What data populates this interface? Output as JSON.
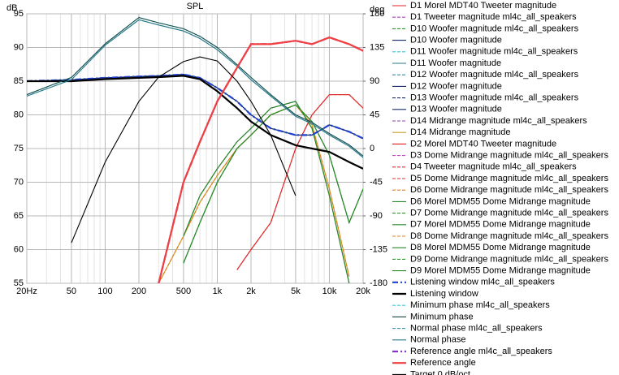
{
  "chart_data": {
    "type": "line",
    "title": "SPL",
    "y_label": "dB",
    "y2_label": "deg",
    "x_scale": "log",
    "grid": true,
    "minor_grid": true,
    "legend": "right",
    "xlim": [
      20,
      20000
    ],
    "xticks": [
      {
        "value": 20,
        "label": "20Hz"
      },
      50,
      100,
      200,
      500,
      {
        "value": 1000,
        "label": "1k"
      },
      {
        "value": 2000,
        "label": "2k"
      },
      {
        "value": 5000,
        "label": "5k"
      },
      {
        "value": 10000,
        "label": "10k"
      },
      {
        "value": 20000,
        "label": "20k"
      }
    ],
    "ylim": [
      55,
      95
    ],
    "yticks": [
      95,
      90,
      85,
      80,
      75,
      70,
      65,
      60,
      55
    ],
    "y2lim": [
      -180,
      180
    ],
    "y2ticks": [
      180,
      135,
      90,
      45,
      0,
      -45,
      -90,
      -135,
      -180
    ],
    "x": [
      20,
      50,
      100,
      200,
      300,
      500,
      700,
      1000,
      1500,
      2000,
      3000,
      5000,
      7000,
      10000,
      15000,
      20000
    ],
    "series": [
      {
        "name": "D1 Morel MDT40 Tweeter magnitude",
        "color": "#e02020",
        "style": "solid",
        "values": [
          null,
          null,
          null,
          null,
          55,
          70,
          76,
          82,
          87,
          90.5,
          90.5,
          91,
          90.5,
          91.5,
          90.5,
          89.5
        ]
      },
      {
        "name": "D1 Tweeter magnitude ml4c_all_speakers",
        "color": "#b040c0",
        "style": "dashed",
        "values": [
          null,
          null,
          null,
          null,
          55,
          70,
          76,
          82,
          87,
          90.5,
          90.5,
          91,
          90.5,
          91.5,
          90.5,
          89.5
        ]
      },
      {
        "name": "D10 Woofer magnitude ml4c_all_speakers",
        "color": "#2a9a2a",
        "style": "dashed",
        "values": [
          85,
          85.2,
          85.5,
          85.7,
          85.8,
          86,
          85.5,
          84,
          82,
          80,
          78,
          77,
          77,
          78.5,
          77.5,
          76.5
        ]
      },
      {
        "name": "D10 Woofer magnitude",
        "color": "#1a2a6a",
        "style": "solid",
        "values": [
          85,
          85.2,
          85.5,
          85.7,
          85.8,
          86,
          85.5,
          84,
          82,
          80,
          78,
          77,
          77,
          78.5,
          77.5,
          76.5
        ]
      },
      {
        "name": "D11 Woofer magnitude ml4c_all_speakers",
        "color": "#30c8d8",
        "style": "dashed",
        "values": [
          85,
          85,
          85.3,
          85.5,
          85.6,
          85.8,
          85.3,
          83.5,
          81,
          79,
          77,
          75.5,
          75,
          74.5,
          73,
          72
        ]
      },
      {
        "name": "D11 Woofer magnitude",
        "color": "#2a7a8a",
        "style": "solid",
        "values": [
          85,
          85,
          85.3,
          85.5,
          85.6,
          85.8,
          85.3,
          83.5,
          81,
          79,
          77,
          75.5,
          75,
          74.5,
          73,
          72
        ]
      },
      {
        "name": "D12 Woofer magnitude ml4c_all_speakers",
        "color": "#3a8a9a",
        "style": "dashed",
        "values": [
          85,
          85.2,
          85.5,
          85.7,
          85.8,
          86,
          85.5,
          84,
          82,
          80,
          78,
          77,
          77,
          78.5,
          77.5,
          76.5
        ]
      },
      {
        "name": "D12 Woofer magnitude",
        "color": "#1a2a6a",
        "style": "solid",
        "values": [
          85,
          85.2,
          85.5,
          85.7,
          85.8,
          86,
          85.5,
          84,
          82,
          80,
          78,
          77,
          77,
          78.5,
          77.5,
          76.5
        ]
      },
      {
        "name": "D13 Woofer magnitude ml4c_all_speakers",
        "color": "#1a2a6a",
        "style": "dashed",
        "values": [
          85,
          85,
          85.3,
          85.5,
          85.6,
          85.8,
          85.3,
          83.5,
          81,
          79,
          77,
          75.5,
          75,
          74.5,
          73,
          72
        ]
      },
      {
        "name": "D13 Woofer magnitude",
        "color": "#1a2a6a",
        "style": "solid",
        "values": [
          85,
          85,
          85.3,
          85.5,
          85.6,
          85.8,
          85.3,
          83.5,
          81,
          79,
          77,
          75.5,
          75,
          74.5,
          73,
          72
        ]
      },
      {
        "name": "D14 Midrange magnitude ml4c_all_speakers",
        "color": "#9040b0",
        "style": "dashed",
        "values": [
          null,
          null,
          null,
          null,
          null,
          62,
          68,
          72,
          76,
          78,
          81,
          82,
          78,
          68,
          55,
          null
        ]
      },
      {
        "name": "D14 Midrange magnitude",
        "color": "#c8a020",
        "style": "solid",
        "values": [
          null,
          null,
          null,
          null,
          55,
          62,
          67,
          71,
          75,
          77,
          80,
          81.5,
          78.5,
          69,
          56,
          null
        ]
      },
      {
        "name": "D2 Morel MDT40 Tweeter magnitude",
        "color": "#e02020",
        "style": "solid",
        "values": [
          null,
          null,
          null,
          null,
          null,
          null,
          null,
          null,
          57,
          60,
          64,
          75,
          80,
          83,
          83,
          81
        ]
      },
      {
        "name": "D3 Dome Midrange magnitude ml4c_all_speakers",
        "color": "#d040d0",
        "style": "dashed",
        "values": [
          null,
          null,
          null,
          null,
          55,
          70,
          76,
          82,
          87,
          90.5,
          90.5,
          91,
          90.5,
          91.5,
          90.5,
          89.5
        ]
      },
      {
        "name": "D4 Tweeter magnitude ml4c_all_speakers",
        "color": "#e03030",
        "style": "dashed",
        "values": [
          null,
          null,
          null,
          null,
          null,
          null,
          null,
          null,
          57,
          60,
          64,
          75,
          80,
          83,
          83,
          81
        ]
      },
      {
        "name": "D5 Dome Midrange magnitude ml4c_all_speakers",
        "color": "#e03030",
        "style": "dashed",
        "values": [
          null,
          null,
          null,
          null,
          null,
          null,
          null,
          null,
          57,
          60,
          64,
          75,
          80,
          83,
          83,
          81
        ]
      },
      {
        "name": "D6 Dome Midrange magnitude ml4c_all_speakers",
        "color": "#e08020",
        "style": "dashed",
        "values": [
          null,
          null,
          null,
          null,
          55,
          62,
          67,
          71,
          75,
          77,
          80,
          81.5,
          78.5,
          69,
          56,
          null
        ]
      },
      {
        "name": "D6 Morel MDM55 Dome Midrange magnitude",
        "color": "#2a8a2a",
        "style": "solid",
        "values": [
          null,
          null,
          null,
          null,
          null,
          62,
          68,
          72,
          76,
          78,
          81,
          82,
          78,
          68,
          55,
          null
        ]
      },
      {
        "name": "D7 Dome Midrange magnitude ml4c_all_speakers",
        "color": "#2a9a2a",
        "style": "dashed",
        "values": [
          null,
          null,
          null,
          null,
          null,
          58,
          64,
          70,
          75,
          77,
          80,
          81.5,
          79,
          74,
          64,
          69
        ]
      },
      {
        "name": "D7 Morel MDM55 Dome Midrange magnitude",
        "color": "#2a8a2a",
        "style": "solid",
        "values": [
          null,
          null,
          null,
          null,
          null,
          58,
          64,
          70,
          75,
          77,
          80,
          81.5,
          79,
          74,
          64,
          69
        ]
      },
      {
        "name": "D8 Dome Midrange magnitude ml4c_all_speakers",
        "color": "#e08020",
        "style": "dashed",
        "values": [
          null,
          null,
          null,
          null,
          55,
          62,
          67,
          71,
          75,
          77,
          80,
          81.5,
          78.5,
          69,
          56,
          null
        ]
      },
      {
        "name": "D8 Morel MDM55 Dome Midrange magnitude",
        "color": "#2a8a2a",
        "style": "solid",
        "values": [
          null,
          null,
          null,
          null,
          null,
          62,
          68,
          72,
          76,
          78,
          81,
          82,
          78,
          68,
          55,
          null
        ]
      },
      {
        "name": "D9 Dome Midrange magnitude ml4c_all_speakers",
        "color": "#2a9a2a",
        "style": "dashed",
        "values": [
          null,
          null,
          null,
          null,
          null,
          58,
          64,
          70,
          75,
          77,
          80,
          81.5,
          79,
          74,
          64,
          69
        ]
      },
      {
        "name": "D9 Morel MDM55 Dome Midrange magnitude",
        "color": "#2a8a2a",
        "style": "solid",
        "values": [
          null,
          null,
          null,
          null,
          null,
          58,
          64,
          70,
          75,
          77,
          80,
          81.5,
          79,
          74,
          64,
          69
        ]
      },
      {
        "name": "Listening window ml4c_all_speakers",
        "color": "#2040d0",
        "style": "thick-dashdot",
        "values": [
          85,
          85.2,
          85.5,
          85.7,
          85.8,
          86,
          85.5,
          84,
          82,
          80,
          78,
          77,
          77,
          78.5,
          77.5,
          76.5
        ]
      },
      {
        "name": "Listening window",
        "color": "#000000",
        "style": "thick",
        "values": [
          85,
          85,
          85.3,
          85.5,
          85.6,
          85.8,
          85.3,
          83.5,
          81,
          79,
          77,
          75.5,
          75,
          74.5,
          73,
          72
        ]
      },
      {
        "name": "Minimum phase ml4c_all_speakers",
        "color": "#30d0e0",
        "style": "dashed",
        "axis": "y2",
        "values": [
          72,
          95,
          140,
          175,
          168,
          160,
          150,
          135,
          112,
          95,
          72,
          45,
          35,
          20,
          5,
          -10
        ]
      },
      {
        "name": "Minimum phase",
        "color": "#1a4a4a",
        "style": "solid",
        "axis": "y2",
        "values": [
          72,
          95,
          140,
          175,
          168,
          160,
          150,
          135,
          112,
          95,
          72,
          45,
          35,
          20,
          5,
          -10
        ]
      },
      {
        "name": "Normal phase ml4c_all_speakers",
        "color": "#3a9aaa",
        "style": "dashed",
        "axis": "y2",
        "values": [
          70,
          92,
          138,
          172,
          165,
          157,
          147,
          132,
          110,
          92,
          70,
          43,
          33,
          18,
          3,
          -12
        ]
      },
      {
        "name": "Normal phase",
        "color": "#2a7a8a",
        "style": "solid",
        "axis": "y2",
        "values": [
          70,
          92,
          138,
          172,
          165,
          157,
          147,
          132,
          110,
          92,
          70,
          43,
          33,
          18,
          3,
          -12
        ]
      },
      {
        "name": "Reference angle ml4c_all_speakers",
        "color": "#8a30d0",
        "style": "thick-dashdot",
        "values": [
          null,
          null,
          null,
          null,
          55,
          70,
          76,
          82,
          87,
          90.5,
          90.5,
          91,
          90.5,
          91.5,
          90.5,
          89.5
        ]
      },
      {
        "name": "Reference angle",
        "color": "#f04040",
        "style": "thick",
        "values": [
          null,
          null,
          null,
          null,
          55,
          70,
          76,
          82,
          87,
          90.5,
          90.5,
          91,
          90.5,
          91.5,
          90.5,
          89.5
        ]
      },
      {
        "name": "Target 0 dB/oct",
        "color": "#000000",
        "style": "solid",
        "values": [
          null,
          61,
          73,
          82,
          85.6,
          87.9,
          88.6,
          88,
          85,
          82,
          77,
          68,
          null,
          null,
          null,
          null
        ]
      }
    ]
  }
}
